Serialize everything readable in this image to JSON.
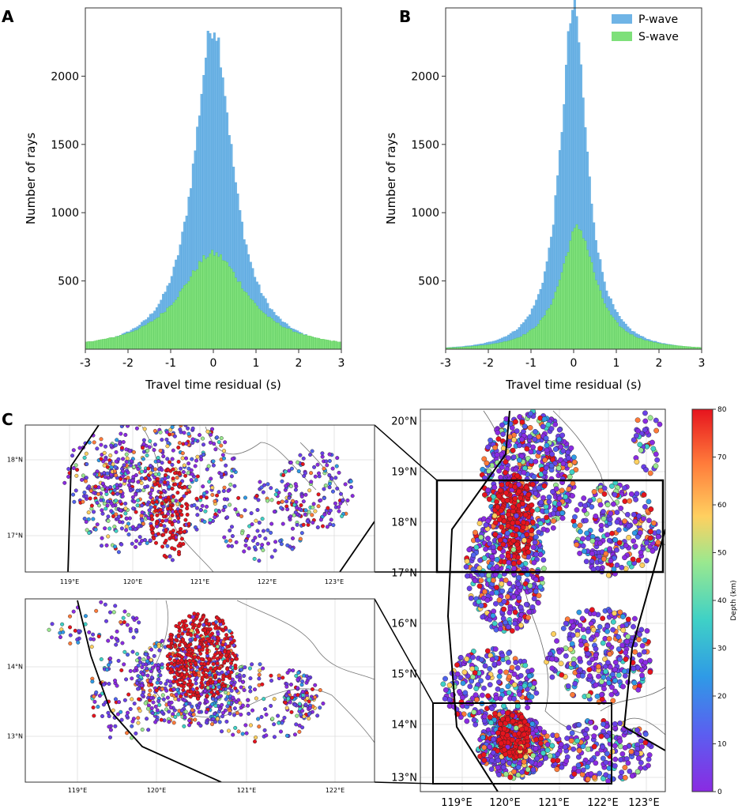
{
  "panel_labels": {
    "a": "A",
    "b": "B",
    "c": "C"
  },
  "colors": {
    "p_wave": "#6fb4e6",
    "s_wave": "#7ee07a",
    "p_edge": "#4a9fd8",
    "s_edge": "#55c455"
  },
  "chart_data": [
    {
      "type": "bar",
      "panel": "A",
      "xlabel": "Travel time residual (s)",
      "ylabel": "Number of rays",
      "xlim": [
        -3,
        3
      ],
      "ylim": [
        0,
        2500
      ],
      "xticks": [
        -3,
        -2,
        -1,
        0,
        1,
        2,
        3
      ],
      "yticks": [
        500,
        1000,
        1500,
        2000
      ],
      "xtick_labels": [
        "-3",
        "-2",
        "-1",
        "0",
        "1",
        "2",
        "3"
      ],
      "ytick_labels": [
        "500",
        "1000",
        "1500",
        "2000"
      ],
      "series": [
        {
          "name": "P-wave",
          "peak": 2370,
          "center": 0,
          "width": 0.55
        },
        {
          "name": "S-wave",
          "peak": 700,
          "center": 0,
          "width": 0.95
        }
      ]
    },
    {
      "type": "bar",
      "panel": "B",
      "xlabel": "Travel time residual (s)",
      "ylabel": "Number of rays",
      "xlim": [
        -3,
        3
      ],
      "ylim": [
        0,
        2500
      ],
      "xticks": [
        -3,
        -2,
        -1,
        0,
        1,
        2,
        3
      ],
      "yticks": [
        500,
        1000,
        1500,
        2000
      ],
      "xtick_labels": [
        "-3",
        "-2",
        "-1",
        "0",
        "1",
        "2",
        "3"
      ],
      "ytick_labels": [
        "500",
        "1000",
        "1500",
        "2000"
      ],
      "legend": {
        "placement": "top-right",
        "entries": [
          "P-wave",
          "S-wave"
        ]
      },
      "series": [
        {
          "name": "P-wave",
          "peak": 2500,
          "center": 0,
          "width": 0.38
        },
        {
          "name": "S-wave",
          "peak": 890,
          "center": 0.1,
          "width": 0.5
        }
      ]
    },
    {
      "type": "scatter",
      "panel": "C",
      "subtitle": "map",
      "colorbar": {
        "label": "Depth (km)",
        "ticks": [
          "0",
          "10",
          "20",
          "30",
          "40",
          "50",
          "60",
          "70",
          "80"
        ],
        "range": [
          0,
          80
        ]
      },
      "main_map": {
        "lon_labels": [
          "119°E",
          "120°E",
          "121°E",
          "122°E",
          "123°E"
        ],
        "lat_labels": [
          "20°N",
          "19°N",
          "18°N",
          "17°N",
          "16°N",
          "15°N",
          "14°N",
          "13°N"
        ]
      },
      "inset_top": {
        "lon_labels": [
          "119°E",
          "120°E",
          "121°E",
          "122°E",
          "123°E"
        ],
        "lat_labels": [
          "18°N",
          "17°N"
        ]
      },
      "inset_bottom": {
        "lon_labels": [
          "119°E",
          "120°E",
          "121°E",
          "122°E"
        ],
        "lat_labels": [
          "14°N",
          "13°N"
        ]
      }
    }
  ]
}
